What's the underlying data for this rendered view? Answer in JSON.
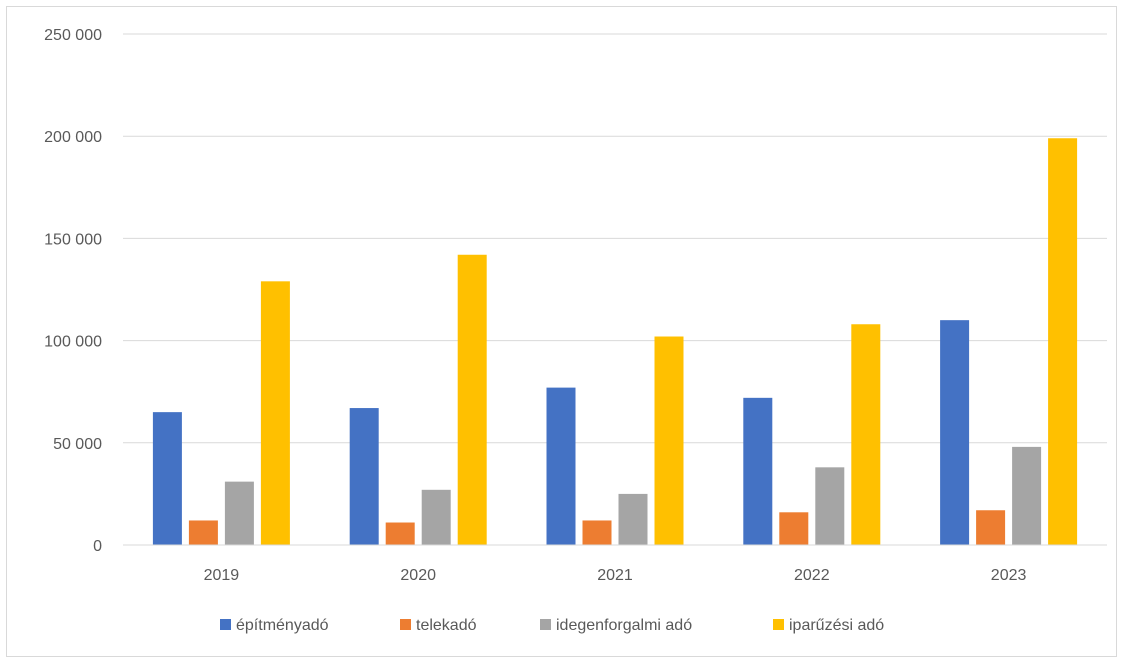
{
  "chart_data": {
    "type": "bar",
    "title": "",
    "xlabel": "",
    "ylabel": "",
    "categories": [
      "2019",
      "2020",
      "2021",
      "2022",
      "2023"
    ],
    "ylim": [
      0,
      250000
    ],
    "yticks": [
      0,
      50000,
      100000,
      150000,
      200000,
      250000
    ],
    "ytick_labels": [
      "0",
      "50 000",
      "100 000",
      "150 000",
      "200 000",
      "250 000"
    ],
    "grid": true,
    "legend_position": "bottom",
    "series": [
      {
        "name": "építményadó",
        "color": "#4472c4",
        "values": [
          65000,
          67000,
          77000,
          72000,
          110000
        ]
      },
      {
        "name": "telekadó",
        "color": "#ed7d31",
        "values": [
          12000,
          11000,
          12000,
          16000,
          17000
        ]
      },
      {
        "name": "idegenforgalmi adó",
        "color": "#a5a5a5",
        "values": [
          31000,
          27000,
          25000,
          38000,
          48000
        ]
      },
      {
        "name": "iparűzési adó",
        "color": "#ffc000",
        "values": [
          129000,
          142000,
          102000,
          108000,
          199000
        ]
      }
    ]
  }
}
